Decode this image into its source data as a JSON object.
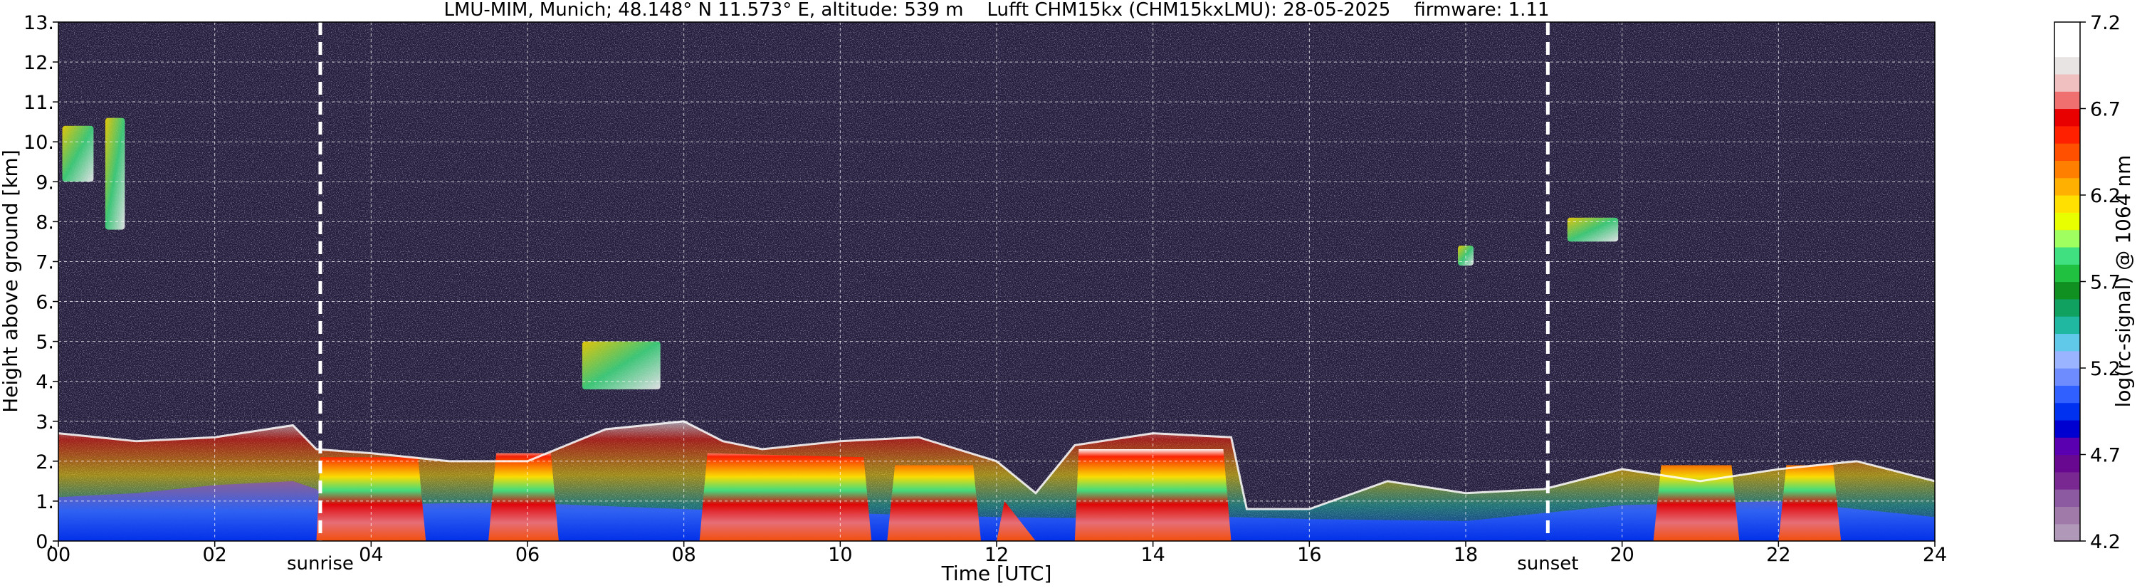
{
  "chart_data": {
    "type": "heatmap",
    "title": "LMU-MIM, Munich; 48.148° N 11.573° E, altitude: 539 m    Lufft CHM15kx (CHM15kxLMU): 28-05-2025    firmware: 1.11",
    "xlabel": "Time [UTC]",
    "ylabel": "Height above ground [km]",
    "colorbar_label": "log(rc-signal) @ 1064 nm",
    "xlim": [
      0,
      24
    ],
    "ylim": [
      0,
      13
    ],
    "clim": [
      4.2,
      7.2
    ],
    "x_ticks": [
      {
        "value": 0,
        "label": "00"
      },
      {
        "value": 2,
        "label": "02"
      },
      {
        "value": 4,
        "label": "04"
      },
      {
        "value": 6,
        "label": "06"
      },
      {
        "value": 8,
        "label": "08"
      },
      {
        "value": 10,
        "label": "10"
      },
      {
        "value": 12,
        "label": "12"
      },
      {
        "value": 14,
        "label": "14"
      },
      {
        "value": 16,
        "label": "16"
      },
      {
        "value": 18,
        "label": "18"
      },
      {
        "value": 20,
        "label": "20"
      },
      {
        "value": 22,
        "label": "22"
      },
      {
        "value": 24,
        "label": "24"
      }
    ],
    "y_ticks": [
      {
        "value": 0,
        "label": "0."
      },
      {
        "value": 1,
        "label": "1."
      },
      {
        "value": 2,
        "label": "2."
      },
      {
        "value": 3,
        "label": "3."
      },
      {
        "value": 4,
        "label": "4."
      },
      {
        "value": 5,
        "label": "5."
      },
      {
        "value": 6,
        "label": "6."
      },
      {
        "value": 7,
        "label": "7."
      },
      {
        "value": 8,
        "label": "8."
      },
      {
        "value": 9,
        "label": "9."
      },
      {
        "value": 10,
        "label": "10."
      },
      {
        "value": 11,
        "label": "11."
      },
      {
        "value": 12,
        "label": "12."
      },
      {
        "value": 13,
        "label": "13."
      }
    ],
    "colorbar_ticks": [
      {
        "value": 4.2,
        "label": "4.2"
      },
      {
        "value": 4.7,
        "label": "4.7"
      },
      {
        "value": 5.2,
        "label": "5.2"
      },
      {
        "value": 5.7,
        "label": "5.7"
      },
      {
        "value": 6.2,
        "label": "6.2"
      },
      {
        "value": 6.7,
        "label": "6.7"
      },
      {
        "value": 7.2,
        "label": "7.2"
      }
    ],
    "colorbar_colors": [
      "#b098b8",
      "#a07aa8",
      "#8c5aa0",
      "#782890",
      "#680890",
      "#5a00b0",
      "#0000d0",
      "#0030f0",
      "#3060ff",
      "#6f8cff",
      "#9ab4ff",
      "#60c8e8",
      "#20b8a0",
      "#10a060",
      "#109020",
      "#20c040",
      "#40e080",
      "#a0ff60",
      "#e8ff00",
      "#ffe000",
      "#ffb000",
      "#ff8000",
      "#ff5000",
      "#ff2000",
      "#e80000",
      "#f07070",
      "#f0c0c0",
      "#e8e4e4",
      "#ffffff",
      "#ffffff"
    ],
    "vertical_markers": [
      {
        "x": 3.35,
        "label": "sunrise"
      },
      {
        "x": 19.05,
        "label": "sunset"
      }
    ],
    "grid": true,
    "layers": [
      {
        "name": "aerosol",
        "points": [
          [
            0,
            1.1
          ],
          [
            1,
            1.2
          ],
          [
            2,
            1.4
          ],
          [
            3,
            1.5
          ],
          [
            3.3,
            1.3
          ],
          [
            3.5,
            0.9
          ],
          [
            4,
            0.9
          ],
          [
            5,
            0.95
          ],
          [
            6,
            0.95
          ],
          [
            8,
            0.8
          ],
          [
            10,
            0.7
          ],
          [
            12,
            0.6
          ],
          [
            14,
            0.55
          ],
          [
            15,
            0.6
          ],
          [
            16,
            0.55
          ],
          [
            18,
            0.5
          ],
          [
            19,
            0.7
          ],
          [
            20,
            0.9
          ],
          [
            22,
            1.0
          ],
          [
            24,
            0.6
          ]
        ]
      },
      {
        "name": "boundary-layer",
        "points": [
          [
            0,
            2.7
          ],
          [
            1,
            2.5
          ],
          [
            2,
            2.6
          ],
          [
            3,
            2.9
          ],
          [
            3.3,
            2.3
          ],
          [
            4,
            2.2
          ],
          [
            5,
            2.0
          ],
          [
            6,
            2.0
          ],
          [
            6.5,
            2.4
          ],
          [
            7,
            2.8
          ],
          [
            8,
            3.0
          ],
          [
            8.5,
            2.5
          ],
          [
            9,
            2.3
          ],
          [
            10,
            2.5
          ],
          [
            11,
            2.6
          ],
          [
            12,
            2.0
          ],
          [
            12.5,
            1.2
          ],
          [
            13,
            2.4
          ],
          [
            14,
            2.7
          ],
          [
            15,
            2.6
          ],
          [
            15.2,
            0.8
          ],
          [
            16,
            0.8
          ],
          [
            17,
            1.5
          ],
          [
            18,
            1.2
          ],
          [
            19,
            1.3
          ],
          [
            20,
            1.8
          ],
          [
            21,
            1.5
          ],
          [
            22,
            1.8
          ],
          [
            23,
            2.0
          ],
          [
            24,
            1.5
          ]
        ]
      },
      {
        "name": "cloud-cover",
        "points": [
          [
            0,
            0
          ],
          [
            3.3,
            0
          ],
          [
            3.35,
            2.1
          ],
          [
            4.6,
            2.1
          ],
          [
            4.7,
            0
          ],
          [
            5.5,
            0
          ],
          [
            5.6,
            2.2
          ],
          [
            6.3,
            2.2
          ],
          [
            6.4,
            0
          ],
          [
            8.2,
            0
          ],
          [
            8.3,
            2.2
          ],
          [
            10.3,
            2.1
          ],
          [
            10.4,
            0
          ],
          [
            10.6,
            0
          ],
          [
            10.7,
            1.9
          ],
          [
            11.7,
            1.9
          ],
          [
            11.8,
            0
          ],
          [
            12.0,
            0
          ],
          [
            12.1,
            1.0
          ],
          [
            12.5,
            0
          ],
          [
            13.0,
            0
          ],
          [
            13.05,
            2.3
          ],
          [
            14.9,
            2.3
          ],
          [
            15.0,
            0
          ],
          [
            20.4,
            0
          ],
          [
            20.5,
            1.9
          ],
          [
            21.4,
            1.9
          ],
          [
            21.5,
            0
          ],
          [
            22.0,
            0
          ],
          [
            22.1,
            1.9
          ],
          [
            22.7,
            1.9
          ],
          [
            22.8,
            0
          ],
          [
            24,
            0
          ]
        ]
      }
    ],
    "cloud_patches": [
      {
        "x0": 0.05,
        "x1": 0.45,
        "y0": 9.0,
        "y1": 10.4
      },
      {
        "x0": 0.6,
        "x1": 0.85,
        "y0": 7.8,
        "y1": 10.6
      },
      {
        "x0": 6.7,
        "x1": 7.7,
        "y0": 3.8,
        "y1": 5.0
      },
      {
        "x0": 19.3,
        "x1": 19.95,
        "y0": 7.5,
        "y1": 8.1
      },
      {
        "x0": 17.9,
        "x1": 18.1,
        "y0": 6.9,
        "y1": 7.4
      }
    ]
  }
}
